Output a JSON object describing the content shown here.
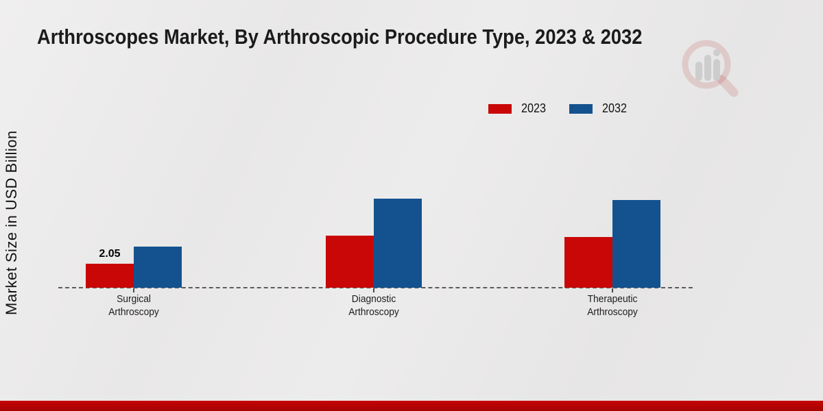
{
  "title": "Arthroscopes Market, By Arthroscopic Procedure Type, 2023 & 2032",
  "y_axis_label": "Market Size in USD Billion",
  "legend": [
    {
      "label": "2023",
      "color": "#c90707"
    },
    {
      "label": "2032",
      "color": "#14528f"
    }
  ],
  "colors": {
    "series_2023": "#c90707",
    "series_2032": "#14528f",
    "footer_bar": "#b30303",
    "background": "#eae9e9",
    "baseline": "#5b5b5b"
  },
  "chart_data": {
    "type": "bar",
    "title": "Arthroscopes Market, By Arthroscopic Procedure Type, 2023 & 2032",
    "xlabel": "",
    "ylabel": "Market Size in USD Billion",
    "categories": [
      "Surgical\nArthroscopy",
      "Diagnostic\nArthroscopy",
      "Therapeutic\nArthroscopy"
    ],
    "series": [
      {
        "name": "2023",
        "color": "#c90707",
        "values": [
          2.05,
          4.45,
          4.35
        ]
      },
      {
        "name": "2032",
        "color": "#14528f",
        "values": [
          3.5,
          7.6,
          7.5
        ]
      }
    ],
    "value_labels": [
      {
        "series_index": 0,
        "category_index": 0,
        "text": "2.05"
      }
    ],
    "ylim": [
      0,
      8.5
    ],
    "grid": false,
    "axis_line_style": "dashed",
    "legend_position": "top-right"
  },
  "watermark": {
    "name": "magnifier-bar-chart-logo"
  }
}
